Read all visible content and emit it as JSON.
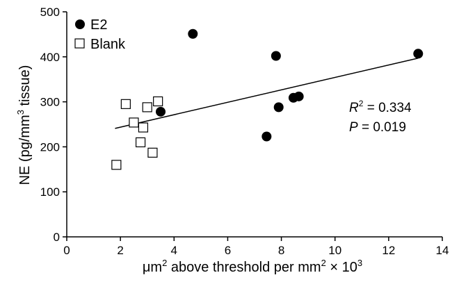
{
  "chart_data": {
    "type": "scatter",
    "xlabel_parts": {
      "a": "μm",
      "a_sup": "2",
      "b": " above threshold per mm",
      "b_sup": "2",
      "c": " × 10",
      "c_sup": "3"
    },
    "ylabel_parts": {
      "a": "NE (pg/mm",
      "a_sup": "3",
      "b": " tissue)"
    },
    "xlim": [
      0,
      14
    ],
    "ylim": [
      0,
      500
    ],
    "x_ticks": [
      "0",
      "2",
      "4",
      "6",
      "8",
      "10",
      "12",
      "14"
    ],
    "y_ticks": [
      "0",
      "100",
      "200",
      "300",
      "400",
      "500"
    ],
    "legend": [
      {
        "label": "E2",
        "marker": "filled-circle"
      },
      {
        "label": "Blank",
        "marker": "open-square"
      }
    ],
    "series": [
      {
        "name": "E2",
        "marker": "filled-circle",
        "color": "#000000",
        "points": [
          {
            "x": 3.5,
            "y": 278
          },
          {
            "x": 4.7,
            "y": 451
          },
          {
            "x": 7.45,
            "y": 223
          },
          {
            "x": 7.8,
            "y": 402
          },
          {
            "x": 7.9,
            "y": 288
          },
          {
            "x": 8.45,
            "y": 309
          },
          {
            "x": 8.65,
            "y": 312
          },
          {
            "x": 13.1,
            "y": 407
          }
        ]
      },
      {
        "name": "Blank",
        "marker": "open-square",
        "color": "#000000",
        "points": [
          {
            "x": 1.85,
            "y": 160
          },
          {
            "x": 2.2,
            "y": 295
          },
          {
            "x": 2.5,
            "y": 254
          },
          {
            "x": 2.75,
            "y": 210
          },
          {
            "x": 2.85,
            "y": 243
          },
          {
            "x": 3.0,
            "y": 288
          },
          {
            "x": 3.2,
            "y": 187
          },
          {
            "x": 3.4,
            "y": 301
          }
        ]
      }
    ],
    "trendline": {
      "x": [
        1.8,
        13.1
      ],
      "y": [
        241,
        397
      ]
    },
    "annotations": {
      "r2_var": "R",
      "r2_sup": "2",
      "r2_rest": " = 0.334",
      "p_var": "P",
      "p_rest": " = 0.019"
    }
  }
}
